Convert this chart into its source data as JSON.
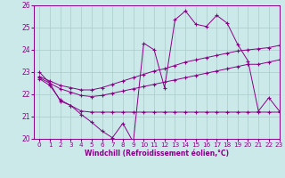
{
  "xlabel": "Windchill (Refroidissement éolien,°C)",
  "xlim": [
    -0.5,
    23
  ],
  "ylim": [
    20,
    26
  ],
  "yticks": [
    20,
    21,
    22,
    23,
    24,
    25,
    26
  ],
  "xticks": [
    0,
    1,
    2,
    3,
    4,
    5,
    6,
    7,
    8,
    9,
    10,
    11,
    12,
    13,
    14,
    15,
    16,
    17,
    18,
    19,
    20,
    21,
    22,
    23
  ],
  "bg_color": "#cce9e9",
  "line_color": "#880088",
  "grid_color": "#aacccc",
  "series": {
    "temperature": [
      23.0,
      22.5,
      21.7,
      21.5,
      21.1,
      20.75,
      20.35,
      20.05,
      20.7,
      19.85,
      24.3,
      24.0,
      22.3,
      25.35,
      25.75,
      25.15,
      25.05,
      25.55,
      25.2,
      24.25,
      23.5,
      21.25,
      21.85,
      21.25
    ],
    "flat": [
      22.7,
      22.4,
      21.75,
      21.5,
      21.25,
      21.2,
      21.2,
      21.2,
      21.2,
      21.2,
      21.2,
      21.2,
      21.2,
      21.2,
      21.2,
      21.2,
      21.2,
      21.2,
      21.2,
      21.2,
      21.2,
      21.2,
      21.2,
      21.2
    ],
    "upper": [
      22.8,
      22.6,
      22.4,
      22.3,
      22.2,
      22.2,
      22.3,
      22.45,
      22.6,
      22.75,
      22.9,
      23.05,
      23.15,
      23.3,
      23.45,
      23.55,
      23.65,
      23.75,
      23.85,
      23.95,
      24.0,
      24.05,
      24.1,
      24.2
    ],
    "middle": [
      22.75,
      22.5,
      22.25,
      22.1,
      21.95,
      21.9,
      21.95,
      22.05,
      22.15,
      22.25,
      22.35,
      22.45,
      22.55,
      22.65,
      22.75,
      22.85,
      22.95,
      23.05,
      23.15,
      23.25,
      23.35,
      23.35,
      23.45,
      23.55
    ]
  }
}
